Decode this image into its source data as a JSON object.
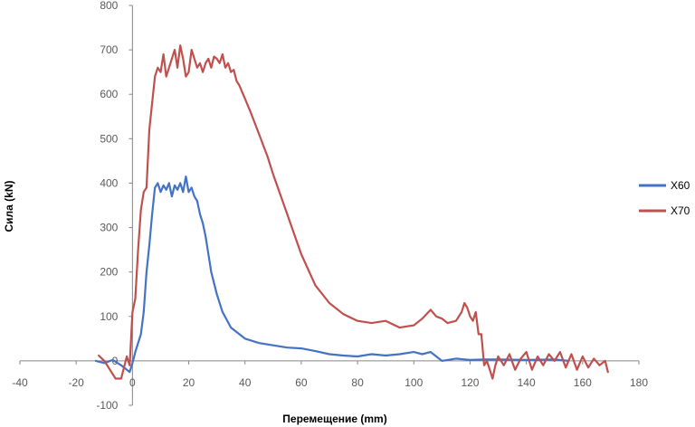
{
  "chart_data": {
    "type": "line",
    "title": "",
    "xlabel": "Перемещение (mm)",
    "ylabel": "Сила (kN)",
    "xlim": [
      -40,
      180
    ],
    "ylim": [
      -100,
      800
    ],
    "xticks": [
      -40,
      -20,
      0,
      20,
      40,
      60,
      80,
      100,
      120,
      140,
      160,
      180
    ],
    "yticks": [
      -100,
      0,
      100,
      200,
      300,
      400,
      500,
      600,
      700,
      800
    ],
    "legend_position": "right",
    "series": [
      {
        "name": "X60",
        "color": "#4472C4",
        "x": [
          -13,
          -10,
          -7,
          -4,
          -1,
          0,
          1,
          2,
          3,
          4,
          5,
          6,
          7,
          8,
          9,
          10,
          11,
          12,
          13,
          14,
          15,
          16,
          17,
          18,
          19,
          20,
          21,
          22,
          23,
          24,
          25,
          26,
          27,
          28,
          30,
          32,
          35,
          38,
          40,
          45,
          50,
          55,
          60,
          65,
          70,
          75,
          80,
          85,
          90,
          95,
          100,
          103,
          106,
          108,
          110,
          115,
          120,
          125,
          130,
          140,
          150,
          155
        ],
        "y": [
          0,
          -5,
          2,
          -10,
          -25,
          -5,
          20,
          40,
          60,
          110,
          200,
          260,
          330,
          390,
          400,
          380,
          395,
          385,
          400,
          370,
          395,
          385,
          400,
          380,
          415,
          380,
          390,
          370,
          360,
          330,
          310,
          280,
          240,
          200,
          150,
          110,
          75,
          60,
          50,
          40,
          35,
          30,
          28,
          22,
          15,
          12,
          10,
          15,
          12,
          15,
          20,
          15,
          20,
          10,
          0,
          5,
          2,
          3,
          3,
          2,
          3,
          0
        ]
      },
      {
        "name": "X70",
        "color": "#C0504D",
        "x": [
          -12,
          -10,
          -8,
          -6,
          -4,
          -2,
          -1,
          0,
          1,
          2,
          3,
          4,
          5,
          6,
          7,
          8,
          9,
          10,
          11,
          12,
          13,
          14,
          15,
          16,
          17,
          18,
          19,
          20,
          21,
          22,
          23,
          24,
          25,
          26,
          27,
          28,
          29,
          30,
          31,
          32,
          33,
          34,
          35,
          36,
          37,
          38,
          40,
          42,
          45,
          48,
          50,
          55,
          60,
          65,
          70,
          75,
          80,
          85,
          90,
          95,
          100,
          103,
          106,
          108,
          110,
          112,
          115,
          117,
          118,
          119,
          120,
          121,
          122,
          123,
          124,
          125,
          126,
          127,
          128,
          129,
          130,
          132,
          134,
          136,
          138,
          140,
          142,
          144,
          146,
          148,
          150,
          152,
          154,
          156,
          158,
          160,
          162,
          164,
          166,
          168,
          169
        ],
        "y": [
          12,
          0,
          -20,
          -40,
          -40,
          10,
          -10,
          110,
          140,
          250,
          340,
          380,
          390,
          520,
          580,
          640,
          660,
          650,
          690,
          640,
          660,
          680,
          700,
          660,
          710,
          680,
          640,
          650,
          700,
          680,
          660,
          670,
          650,
          670,
          680,
          660,
          685,
          680,
          670,
          690,
          660,
          670,
          650,
          655,
          630,
          620,
          590,
          560,
          510,
          460,
          420,
          330,
          240,
          170,
          130,
          105,
          90,
          85,
          90,
          75,
          80,
          95,
          115,
          100,
          95,
          85,
          90,
          110,
          130,
          120,
          100,
          90,
          110,
          60,
          60,
          -10,
          0,
          -20,
          -40,
          -10,
          10,
          -10,
          15,
          -20,
          5,
          20,
          -20,
          10,
          -10,
          15,
          0,
          20,
          -15,
          15,
          -20,
          10,
          -15,
          5,
          -10,
          0,
          -25
        ]
      }
    ]
  }
}
